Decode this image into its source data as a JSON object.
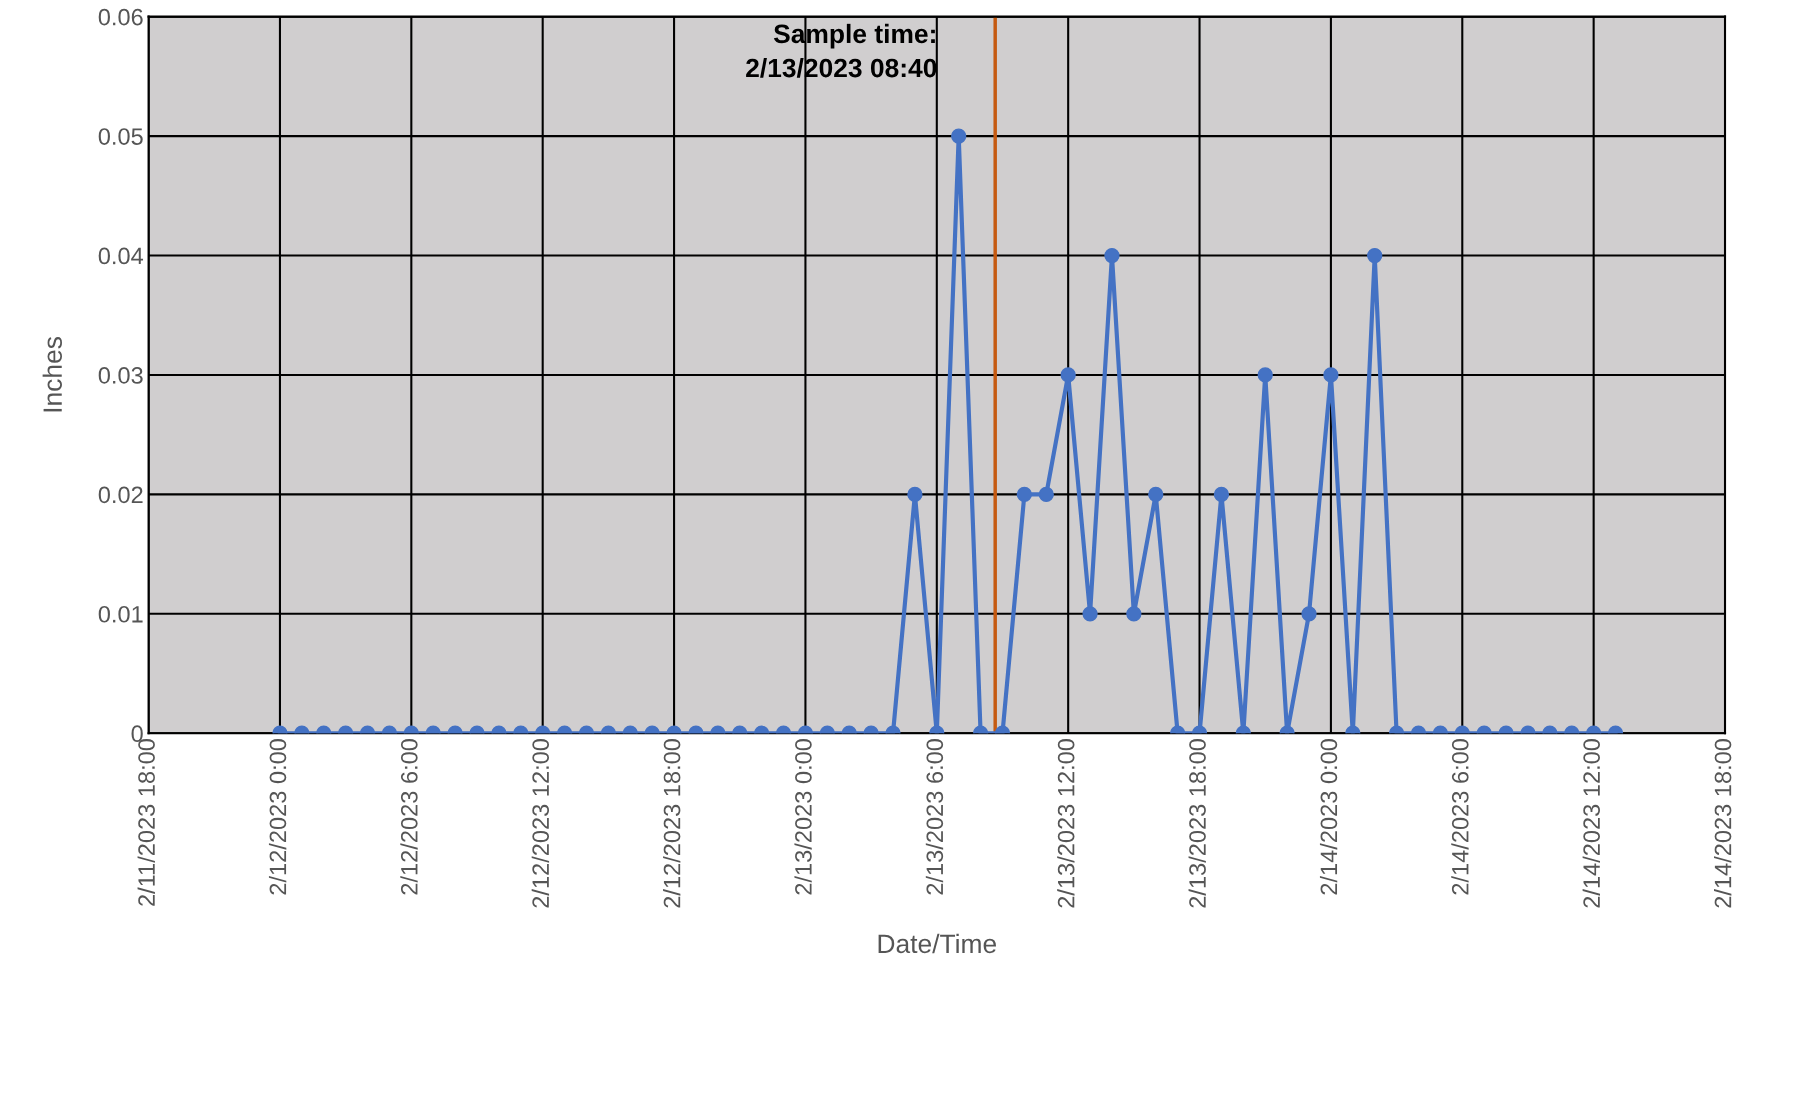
{
  "chart_data": {
    "type": "line",
    "xlabel": "Date/Time",
    "ylabel": "Inches",
    "x": [
      "2023-02-12T00:00",
      "2023-02-12T01:00",
      "2023-02-12T02:00",
      "2023-02-12T03:00",
      "2023-02-12T04:00",
      "2023-02-12T05:00",
      "2023-02-12T06:00",
      "2023-02-12T07:00",
      "2023-02-12T08:00",
      "2023-02-12T09:00",
      "2023-02-12T10:00",
      "2023-02-12T11:00",
      "2023-02-12T12:00",
      "2023-02-12T13:00",
      "2023-02-12T14:00",
      "2023-02-12T15:00",
      "2023-02-12T16:00",
      "2023-02-12T17:00",
      "2023-02-12T18:00",
      "2023-02-12T19:00",
      "2023-02-12T20:00",
      "2023-02-12T21:00",
      "2023-02-12T22:00",
      "2023-02-12T23:00",
      "2023-02-13T00:00",
      "2023-02-13T01:00",
      "2023-02-13T02:00",
      "2023-02-13T03:00",
      "2023-02-13T04:00",
      "2023-02-13T05:00",
      "2023-02-13T06:00",
      "2023-02-13T07:00",
      "2023-02-13T08:00",
      "2023-02-13T09:00",
      "2023-02-13T10:00",
      "2023-02-13T11:00",
      "2023-02-13T12:00",
      "2023-02-13T13:00",
      "2023-02-13T14:00",
      "2023-02-13T15:00",
      "2023-02-13T16:00",
      "2023-02-13T17:00",
      "2023-02-13T18:00",
      "2023-02-13T19:00",
      "2023-02-13T20:00",
      "2023-02-13T21:00",
      "2023-02-13T22:00",
      "2023-02-13T23:00",
      "2023-02-14T00:00",
      "2023-02-14T01:00",
      "2023-02-14T02:00",
      "2023-02-14T03:00",
      "2023-02-14T04:00",
      "2023-02-14T05:00",
      "2023-02-14T06:00",
      "2023-02-14T07:00",
      "2023-02-14T08:00",
      "2023-02-14T09:00",
      "2023-02-14T10:00",
      "2023-02-14T11:00",
      "2023-02-14T12:00",
      "2023-02-14T13:00"
    ],
    "series": [
      {
        "color": "#4472c4",
        "values": [
          0,
          0,
          0,
          0,
          0,
          0,
          0,
          0,
          0,
          0,
          0,
          0,
          0,
          0,
          0,
          0,
          0,
          0,
          0,
          0,
          0,
          0,
          0,
          0,
          0,
          0,
          0,
          0,
          0,
          0.02,
          0,
          0.05,
          0,
          0,
          0.02,
          0.02,
          0.03,
          0.01,
          0.04,
          0.01,
          0.02,
          0,
          0,
          0.02,
          0,
          0.03,
          0,
          0.01,
          0.03,
          0,
          0.04,
          0,
          0,
          0,
          0,
          0,
          0,
          0,
          0,
          0,
          0,
          0
        ]
      }
    ],
    "marker": "circle",
    "line_style": "solid",
    "grid": true,
    "legend": false,
    "xlim": [
      "2023-02-11T18:00",
      "2023-02-14T18:00"
    ],
    "xticks": [
      {
        "value": "2023-02-11T18:00",
        "label": "2/11/2023 18:00"
      },
      {
        "value": "2023-02-12T00:00",
        "label": "2/12/2023 0:00"
      },
      {
        "value": "2023-02-12T06:00",
        "label": "2/12/2023 6:00"
      },
      {
        "value": "2023-02-12T12:00",
        "label": "2/12/2023 12:00"
      },
      {
        "value": "2023-02-12T18:00",
        "label": "2/12/2023 18:00"
      },
      {
        "value": "2023-02-13T00:00",
        "label": "2/13/2023 0:00"
      },
      {
        "value": "2023-02-13T06:00",
        "label": "2/13/2023 6:00"
      },
      {
        "value": "2023-02-13T12:00",
        "label": "2/13/2023 12:00"
      },
      {
        "value": "2023-02-13T18:00",
        "label": "2/13/2023 18:00"
      },
      {
        "value": "2023-02-14T00:00",
        "label": "2/14/2023 0:00"
      },
      {
        "value": "2023-02-14T06:00",
        "label": "2/14/2023 6:00"
      },
      {
        "value": "2023-02-14T12:00",
        "label": "2/14/2023 12:00"
      },
      {
        "value": "2023-02-14T18:00",
        "label": "2/14/2023 18:00"
      }
    ],
    "ylim": [
      0,
      0.06
    ],
    "yticks": [
      0,
      0.01,
      0.02,
      0.03,
      0.04,
      0.05,
      0.06
    ],
    "ref_lines": [
      {
        "axis": "x",
        "value": "2023-02-13T08:40",
        "label": "Sample time:\n2/13/2023 08:40",
        "color": "#c55a11"
      }
    ]
  }
}
